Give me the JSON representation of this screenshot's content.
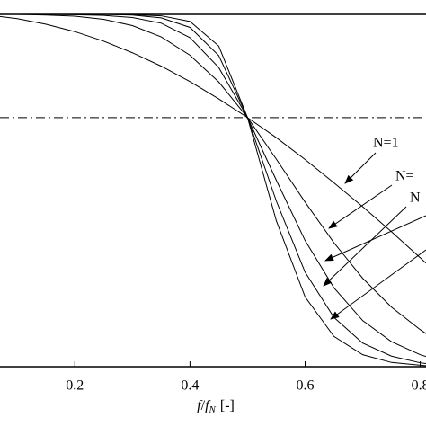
{
  "chart_data": {
    "type": "line",
    "xlabel_parts": [
      "f",
      "/",
      "f",
      "N",
      "[-]"
    ],
    "x": [
      0.07,
      0.1,
      0.15,
      0.2,
      0.25,
      0.3,
      0.35,
      0.4,
      0.45,
      0.5,
      0.55,
      0.6,
      0.65,
      0.7,
      0.75,
      0.8,
      0.81
    ],
    "series": [
      {
        "color": "#000000",
        "values": [
          0.994,
          0.988,
          0.972,
          0.951,
          0.924,
          0.891,
          0.853,
          0.809,
          0.76,
          0.707,
          0.65,
          0.588,
          0.522,
          0.454,
          0.383,
          0.309,
          0.294
        ]
      },
      {
        "color": "#000000",
        "values": [
          1.0,
          1.0,
          0.998,
          0.995,
          0.986,
          0.968,
          0.936,
          0.884,
          0.808,
          0.707,
          0.589,
          0.467,
          0.352,
          0.251,
          0.169,
          0.105,
          0.094
        ]
      },
      {
        "color": "#000000",
        "values": [
          1.0,
          1.0,
          1.0,
          0.999,
          0.997,
          0.991,
          0.975,
          0.934,
          0.849,
          0.707,
          0.529,
          0.358,
          0.224,
          0.131,
          0.071,
          0.034,
          0.029
        ]
      },
      {
        "color": "#000000",
        "values": [
          1.0,
          1.0,
          1.0,
          1.0,
          1.0,
          0.998,
          0.99,
          0.963,
          0.883,
          0.707,
          0.47,
          0.268,
          0.14,
          0.067,
          0.03,
          0.011,
          0.009
        ]
      },
      {
        "color": "#000000",
        "values": [
          1.0,
          1.0,
          1.0,
          1.0,
          1.0,
          0.999,
          0.996,
          0.98,
          0.91,
          0.707,
          0.414,
          0.198,
          0.086,
          0.034,
          0.012,
          0.004,
          0.003
        ]
      }
    ],
    "annotations": [
      "N=1",
      "N=",
      "N"
    ],
    "reference_line": 0.707,
    "xlim": [
      0.07,
      0.81
    ],
    "ylim": [
      0,
      1
    ],
    "xticks": [
      0.2,
      0.4,
      0.6,
      0.8
    ]
  }
}
